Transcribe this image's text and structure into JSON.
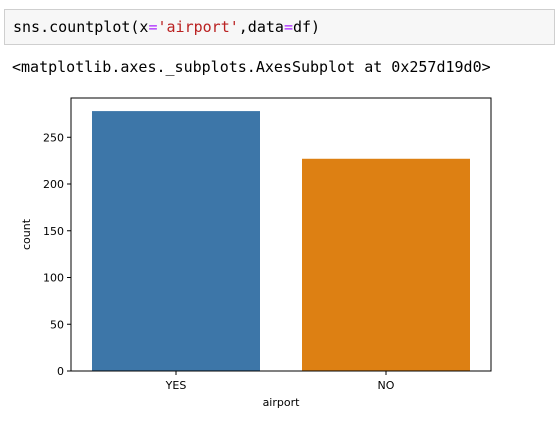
{
  "cell": {
    "code_func": "sns.countplot(x",
    "code_eq1": "=",
    "code_str": "'airport'",
    "code_mid": ",data",
    "code_eq2": "=",
    "code_end": "df)",
    "output_text": "<matplotlib.axes._subplots.AxesSubplot at 0x257d19d0>"
  },
  "chart_data": {
    "type": "bar",
    "categories": [
      "YES",
      "NO"
    ],
    "values": [
      278,
      227
    ],
    "colors": [
      "#3d76a8",
      "#dd8013"
    ],
    "xlabel": "airport",
    "ylabel": "count",
    "ylim": [
      0,
      292
    ],
    "yticks": [
      0,
      50,
      100,
      150,
      200,
      250
    ],
    "grid": false
  }
}
